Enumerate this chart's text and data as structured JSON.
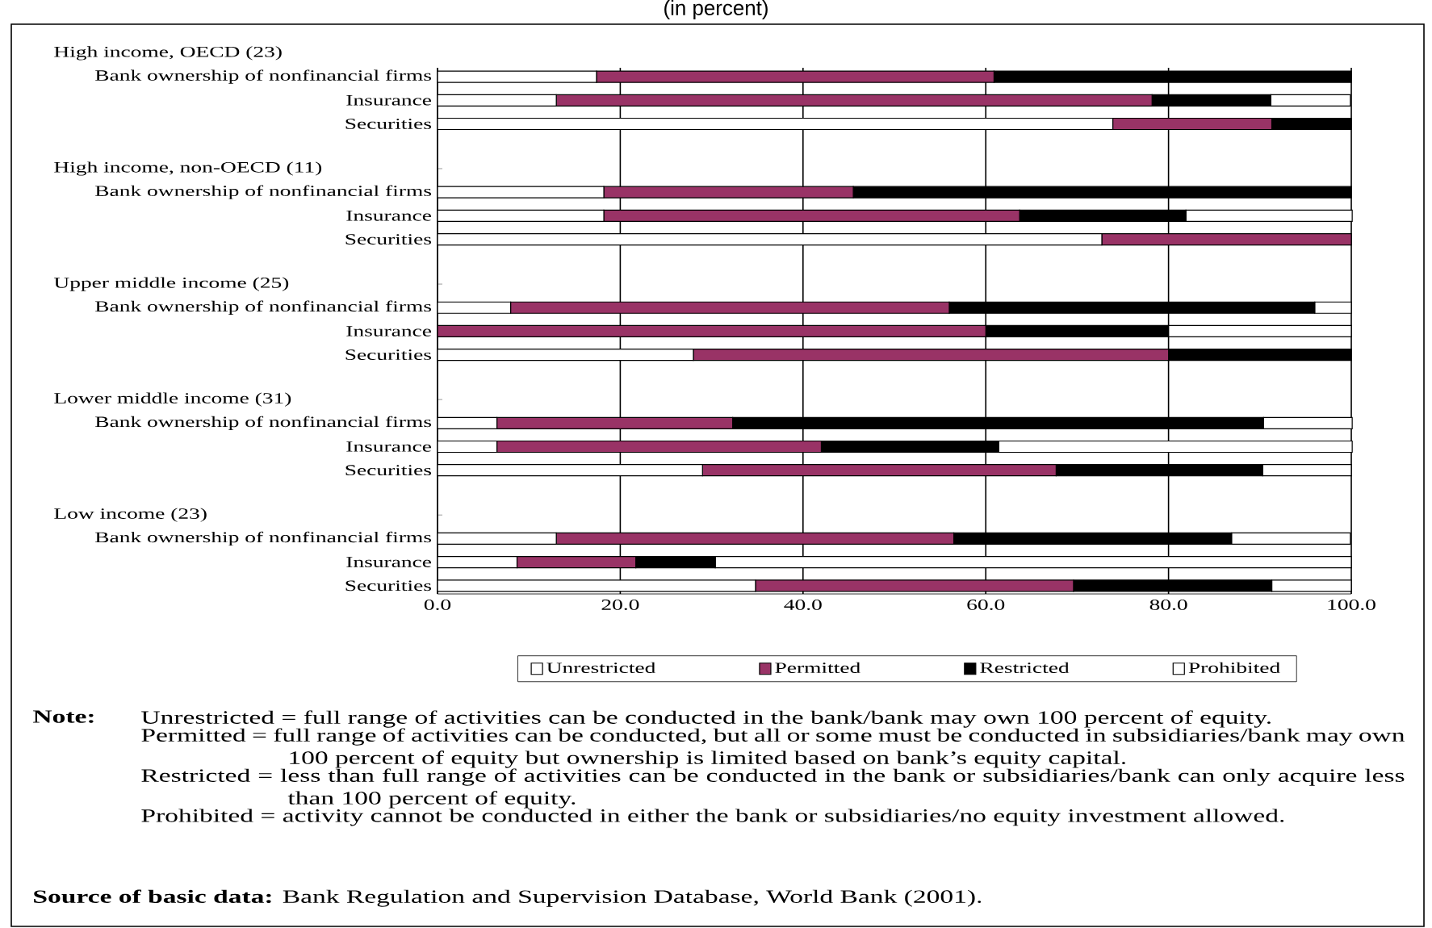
{
  "chart_data": {
    "type": "bar",
    "orientation": "horizontal",
    "stacked": true,
    "title": "(in percent)",
    "categories": [
      null,
      "Bank ownership of nonfinancial firms",
      "Insurance",
      "Securities",
      null,
      "Bank ownership of nonfinancial firms",
      "Insurance",
      "Securities",
      null,
      "Bank ownership of nonfinancial firms",
      "Insurance",
      "Securities",
      null,
      "Bank ownership of nonfinancial firms",
      "Insurance",
      "Securities",
      null,
      "Bank ownership of nonfinancial firms",
      "Insurance",
      "Securities"
    ],
    "series": [
      {
        "name": "Unrestricted",
        "color": "#ffffff",
        "values": [
          null,
          17.4,
          13.0,
          73.9,
          null,
          18.2,
          18.2,
          72.7,
          null,
          8,
          0,
          28,
          null,
          6.5,
          6.5,
          29.0,
          null,
          13.0,
          8.7,
          34.8
        ]
      },
      {
        "name": "Permitted",
        "color": "#993366",
        "values": [
          null,
          43.5,
          65.2,
          17.4,
          null,
          27.3,
          45.5,
          27.3,
          null,
          48,
          60,
          52,
          null,
          25.8,
          35.5,
          38.7,
          null,
          43.5,
          13.0,
          34.8
        ]
      },
      {
        "name": "Restricted",
        "color": "#000000",
        "values": [
          null,
          39.1,
          13.0,
          8.7,
          null,
          54.5,
          18.2,
          0,
          null,
          40,
          20,
          20,
          null,
          58.1,
          19.4,
          22.6,
          null,
          30.4,
          8.7,
          21.7
        ]
      },
      {
        "name": "Prohibited",
        "color": "#ffffff",
        "values": [
          null,
          0,
          8.7,
          0,
          null,
          0,
          18.2,
          0,
          null,
          4,
          20,
          0,
          null,
          9.7,
          38.7,
          9.7,
          null,
          13.0,
          69.6,
          8.7
        ]
      }
    ],
    "xlim": [
      0,
      100
    ],
    "xticks": [
      {
        "value": 0,
        "label": "0.0"
      },
      {
        "value": 20,
        "label": "20.0"
      },
      {
        "value": 40,
        "label": "40.0"
      },
      {
        "value": 60,
        "label": "60.0"
      },
      {
        "value": 80,
        "label": "80.0"
      },
      {
        "value": 100,
        "label": "100.0"
      }
    ],
    "grid": "x",
    "legend": "bottom",
    "annotations": [
      "High income, OECD (23)",
      "High income, non-OECD (11)",
      "Upper middle income (25)",
      "Lower middle income (31)",
      "Low income (23)",
      "Note:",
      "Unrestricted = full range of activities can be conducted in the bank/bank may own 100 percent of equity.",
      "Permitted = full range of activities can be conducted, but all or some must be conducted in subsidiaries/bank may own 100 percent of equity but ownership is limited based on bank’s equity capital.",
      "Restricted = less than full range of activities can be conducted in the bank or subsidiaries/bank can only acquire less than 100 percent of equity.",
      "Prohibited = activity cannot be conducted in either the bank or subsidiaries/no equity investment allowed.",
      "**Source of basic data:** Bank Regulation and Supervision Database, World Bank (2001)."
    ]
  }
}
